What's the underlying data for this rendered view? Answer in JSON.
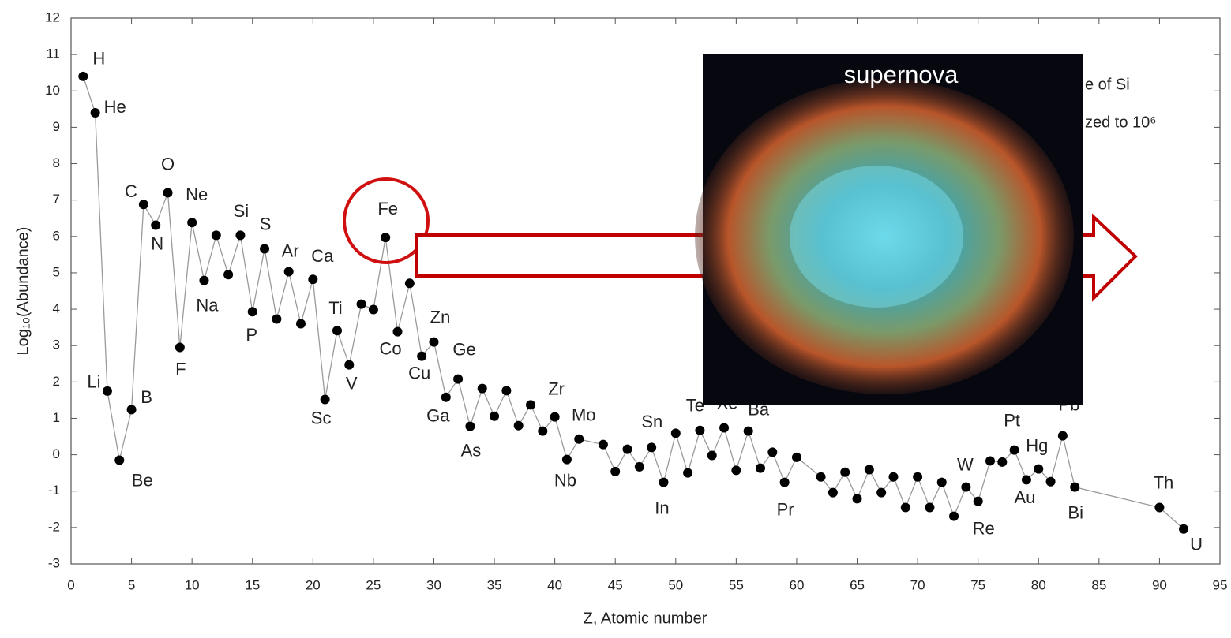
{
  "chart_data": {
    "type": "line",
    "xlabel": "Z, Atomic number",
    "ylabel": "Log₁₀(Abundance)",
    "x": [
      1,
      2,
      3,
      4,
      5,
      6,
      7,
      8,
      9,
      10,
      11,
      12,
      13,
      14,
      15,
      16,
      17,
      18,
      19,
      20,
      21,
      22,
      23,
      24,
      25,
      26,
      27,
      28,
      29,
      30,
      31,
      32,
      33,
      34,
      35,
      36,
      37,
      38,
      39,
      40,
      41,
      42,
      44,
      45,
      46,
      47,
      48,
      49,
      50,
      51,
      52,
      53,
      54,
      55,
      56,
      57,
      58,
      59,
      60,
      62,
      63,
      64,
      65,
      66,
      67,
      68,
      69,
      70,
      71,
      72,
      73,
      74,
      75,
      76,
      77,
      78,
      79,
      80,
      81,
      82,
      83,
      90,
      92
    ],
    "values": [
      10.4,
      9.4,
      1.75,
      -0.15,
      1.24,
      6.88,
      6.31,
      7.2,
      2.95,
      6.38,
      4.79,
      6.03,
      4.95,
      6.03,
      3.93,
      5.66,
      3.73,
      5.03,
      3.6,
      4.82,
      1.52,
      3.41,
      2.47,
      4.14,
      3.99,
      5.97,
      3.38,
      4.71,
      2.71,
      3.1,
      1.58,
      2.08,
      0.78,
      1.82,
      1.06,
      1.76,
      0.8,
      1.37,
      0.65,
      1.04,
      -0.13,
      0.43,
      0.28,
      -0.46,
      0.15,
      -0.33,
      0.2,
      -0.76,
      0.59,
      -0.5,
      0.67,
      -0.02,
      0.74,
      -0.43,
      0.65,
      -0.37,
      0.07,
      -0.76,
      -0.07,
      -0.61,
      -1.04,
      -0.48,
      -1.21,
      -0.41,
      -1.04,
      -0.61,
      -1.45,
      -0.61,
      -1.45,
      -0.76,
      -1.69,
      -0.89,
      -1.28,
      -0.17,
      -0.2,
      0.13,
      -0.69,
      -0.39,
      -0.74,
      0.52,
      -0.89,
      -1.45,
      -2.04
    ],
    "point_labels": [
      "H",
      "He",
      "Li",
      "Be",
      "B",
      "C",
      "N",
      "O",
      "F",
      "Ne",
      "Na",
      null,
      null,
      "Si",
      "P",
      "S",
      null,
      "Ar",
      null,
      "Ca",
      "Sc",
      "Ti",
      "V",
      null,
      null,
      "Fe",
      "Co",
      null,
      "Cu",
      "Zn",
      "Ga",
      "Ge",
      "As",
      null,
      null,
      null,
      null,
      null,
      null,
      "Zr",
      "Nb",
      "Mo",
      null,
      null,
      null,
      null,
      null,
      "In",
      "Sn",
      null,
      "Te",
      null,
      "Xe",
      null,
      "Ba",
      null,
      null,
      "Pr",
      null,
      null,
      null,
      null,
      null,
      null,
      null,
      null,
      null,
      null,
      null,
      null,
      null,
      "W",
      "Re",
      null,
      null,
      "Pt",
      "Au",
      "Hg",
      null,
      "Pb",
      "Bi",
      "Th",
      "U"
    ],
    "color": "#000000",
    "line_color": "#9a9a9a",
    "xlim": [
      0,
      95
    ],
    "xticks": [
      0,
      5,
      10,
      15,
      20,
      25,
      30,
      35,
      40,
      45,
      50,
      55,
      60,
      65,
      70,
      75,
      80,
      85,
      90,
      95
    ],
    "ylim": [
      -3,
      12
    ],
    "yticks": [
      -3,
      -2,
      -1,
      0,
      1,
      2,
      3,
      4,
      5,
      6,
      7,
      8,
      9,
      10,
      11,
      12
    ],
    "annotations": [
      "e of Si",
      "zed to 10⁶"
    ],
    "image_caption": "supernova"
  }
}
